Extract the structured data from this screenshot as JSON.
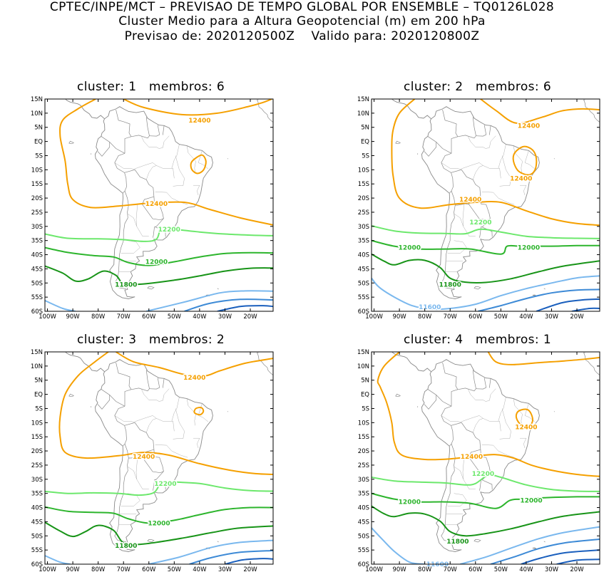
{
  "header": {
    "line1": "CPTEC/INPE/MCT – PREVISAO DE TEMPO GLOBAL POR ENSEMBLE – TQ0126L028",
    "line2": "Cluster Medio para a Altura Geopotencial (m) em 200 hPa",
    "line3": "Previsao de: 2020120500Z    Valido para: 2020120800Z"
  },
  "axes": {
    "lat_labels": [
      "15N",
      "10N",
      "5N",
      "EQ",
      "5S",
      "10S",
      "15S",
      "20S",
      "25S",
      "30S",
      "35S",
      "40S",
      "45S",
      "50S",
      "55S",
      "60S"
    ],
    "lon_labels": [
      "100W",
      "90W",
      "80W",
      "70W",
      "60W",
      "50W",
      "40W",
      "30W",
      "20W"
    ]
  },
  "colors": {
    "c12400": "#f5a000",
    "c12200": "#6ce86c",
    "c12000": "#2db52d",
    "c11800": "#189418",
    "c11600": "#7ab8ee",
    "c11400": "#3d8ad6",
    "c11200": "#1a5fbd",
    "coast": "#8a8a8a"
  },
  "panels": [
    {
      "title": "cluster: 1   membros: 6",
      "contour_labels": [
        {
          "text": "12400",
          "lon": -40,
          "lat": 7.5,
          "color": "c12400"
        },
        {
          "text": "12400",
          "lon": -57,
          "lat": -22,
          "color": "c12400"
        },
        {
          "text": "12200",
          "lon": -52,
          "lat": -31,
          "color": "c12200"
        },
        {
          "text": "12000",
          "lon": -57,
          "lat": -42.5,
          "color": "c12000"
        },
        {
          "text": "11800",
          "lon": -69,
          "lat": -50.5,
          "color": "c11800"
        }
      ]
    },
    {
      "title": "cluster: 2   membros: 6",
      "contour_labels": [
        {
          "text": "12400",
          "lon": -39,
          "lat": 5.5,
          "color": "c12400"
        },
        {
          "text": "12400",
          "lon": -42,
          "lat": -13,
          "color": "c12400"
        },
        {
          "text": "12400",
          "lon": -62,
          "lat": -20.5,
          "color": "c12400"
        },
        {
          "text": "12200",
          "lon": -58,
          "lat": -28.5,
          "color": "c12200"
        },
        {
          "text": "12000",
          "lon": -86,
          "lat": -37.5,
          "color": "c12000"
        },
        {
          "text": "12000",
          "lon": -39,
          "lat": -37.5,
          "color": "c12000"
        },
        {
          "text": "11800",
          "lon": -70,
          "lat": -50.5,
          "color": "c11800"
        },
        {
          "text": "11600",
          "lon": -78,
          "lat": -58.5,
          "color": "c11600"
        }
      ]
    },
    {
      "title": "cluster: 3   membros: 2",
      "contour_labels": [
        {
          "text": "12400",
          "lon": -42,
          "lat": 6,
          "color": "c12400"
        },
        {
          "text": "12400",
          "lon": -62,
          "lat": -22,
          "color": "c12400"
        },
        {
          "text": "12200",
          "lon": -53.5,
          "lat": -31.5,
          "color": "c12200"
        },
        {
          "text": "12000",
          "lon": -56,
          "lat": -45.5,
          "color": "c12000"
        },
        {
          "text": "11800",
          "lon": -69,
          "lat": -53.5,
          "color": "c11800"
        }
      ]
    },
    {
      "title": "cluster: 4   membros: 1",
      "contour_labels": [
        {
          "text": "12400",
          "lon": -40,
          "lat": -11.5,
          "color": "c12400"
        },
        {
          "text": "12400",
          "lon": -61.5,
          "lat": -22,
          "color": "c12400"
        },
        {
          "text": "12200",
          "lon": -57,
          "lat": -28,
          "color": "c12200"
        },
        {
          "text": "12000",
          "lon": -86,
          "lat": -38,
          "color": "c12000"
        },
        {
          "text": "12000",
          "lon": -38,
          "lat": -37.5,
          "color": "c12000"
        },
        {
          "text": "11800",
          "lon": -67,
          "lat": -52,
          "color": "c11800"
        },
        {
          "text": "11600",
          "lon": -75,
          "lat": -60,
          "color": "c11600"
        }
      ]
    }
  ]
}
